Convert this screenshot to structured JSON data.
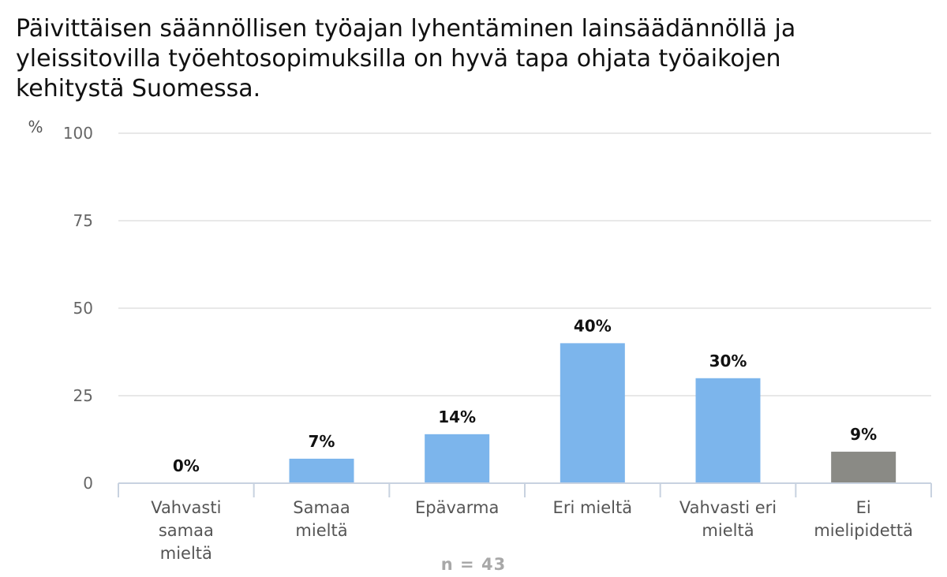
{
  "chart_data": {
    "type": "bar",
    "title": "Päivittäisen säännöllisen työajan lyhentäminen lainsäädännöllä ja yleissitovilla työehtosopimuksilla on hyvä tapa ohjata työaikojen kehitystä Suomessa.",
    "ylabel": "%",
    "xlabel": "",
    "ylim": [
      0,
      100
    ],
    "yticks": [
      0,
      25,
      50,
      75,
      100
    ],
    "categories": [
      [
        "Vahvasti",
        "samaa",
        "mieltä"
      ],
      [
        "Samaa",
        "mieltä"
      ],
      [
        "Epävarma"
      ],
      [
        "Eri mieltä"
      ],
      [
        "Vahvasti eri",
        "mieltä"
      ],
      [
        "Ei",
        "mielipidettä"
      ]
    ],
    "values": [
      0,
      7,
      14,
      40,
      30,
      9
    ],
    "value_labels": [
      "0%",
      "7%",
      "14%",
      "40%",
      "30%",
      "9%"
    ],
    "bar_colors": [
      "#7cb5ec",
      "#7cb5ec",
      "#7cb5ec",
      "#7cb5ec",
      "#7cb5ec",
      "#8a8a85"
    ],
    "grid": true,
    "legend": "none"
  },
  "footer": {
    "n_label": "n = 43"
  }
}
